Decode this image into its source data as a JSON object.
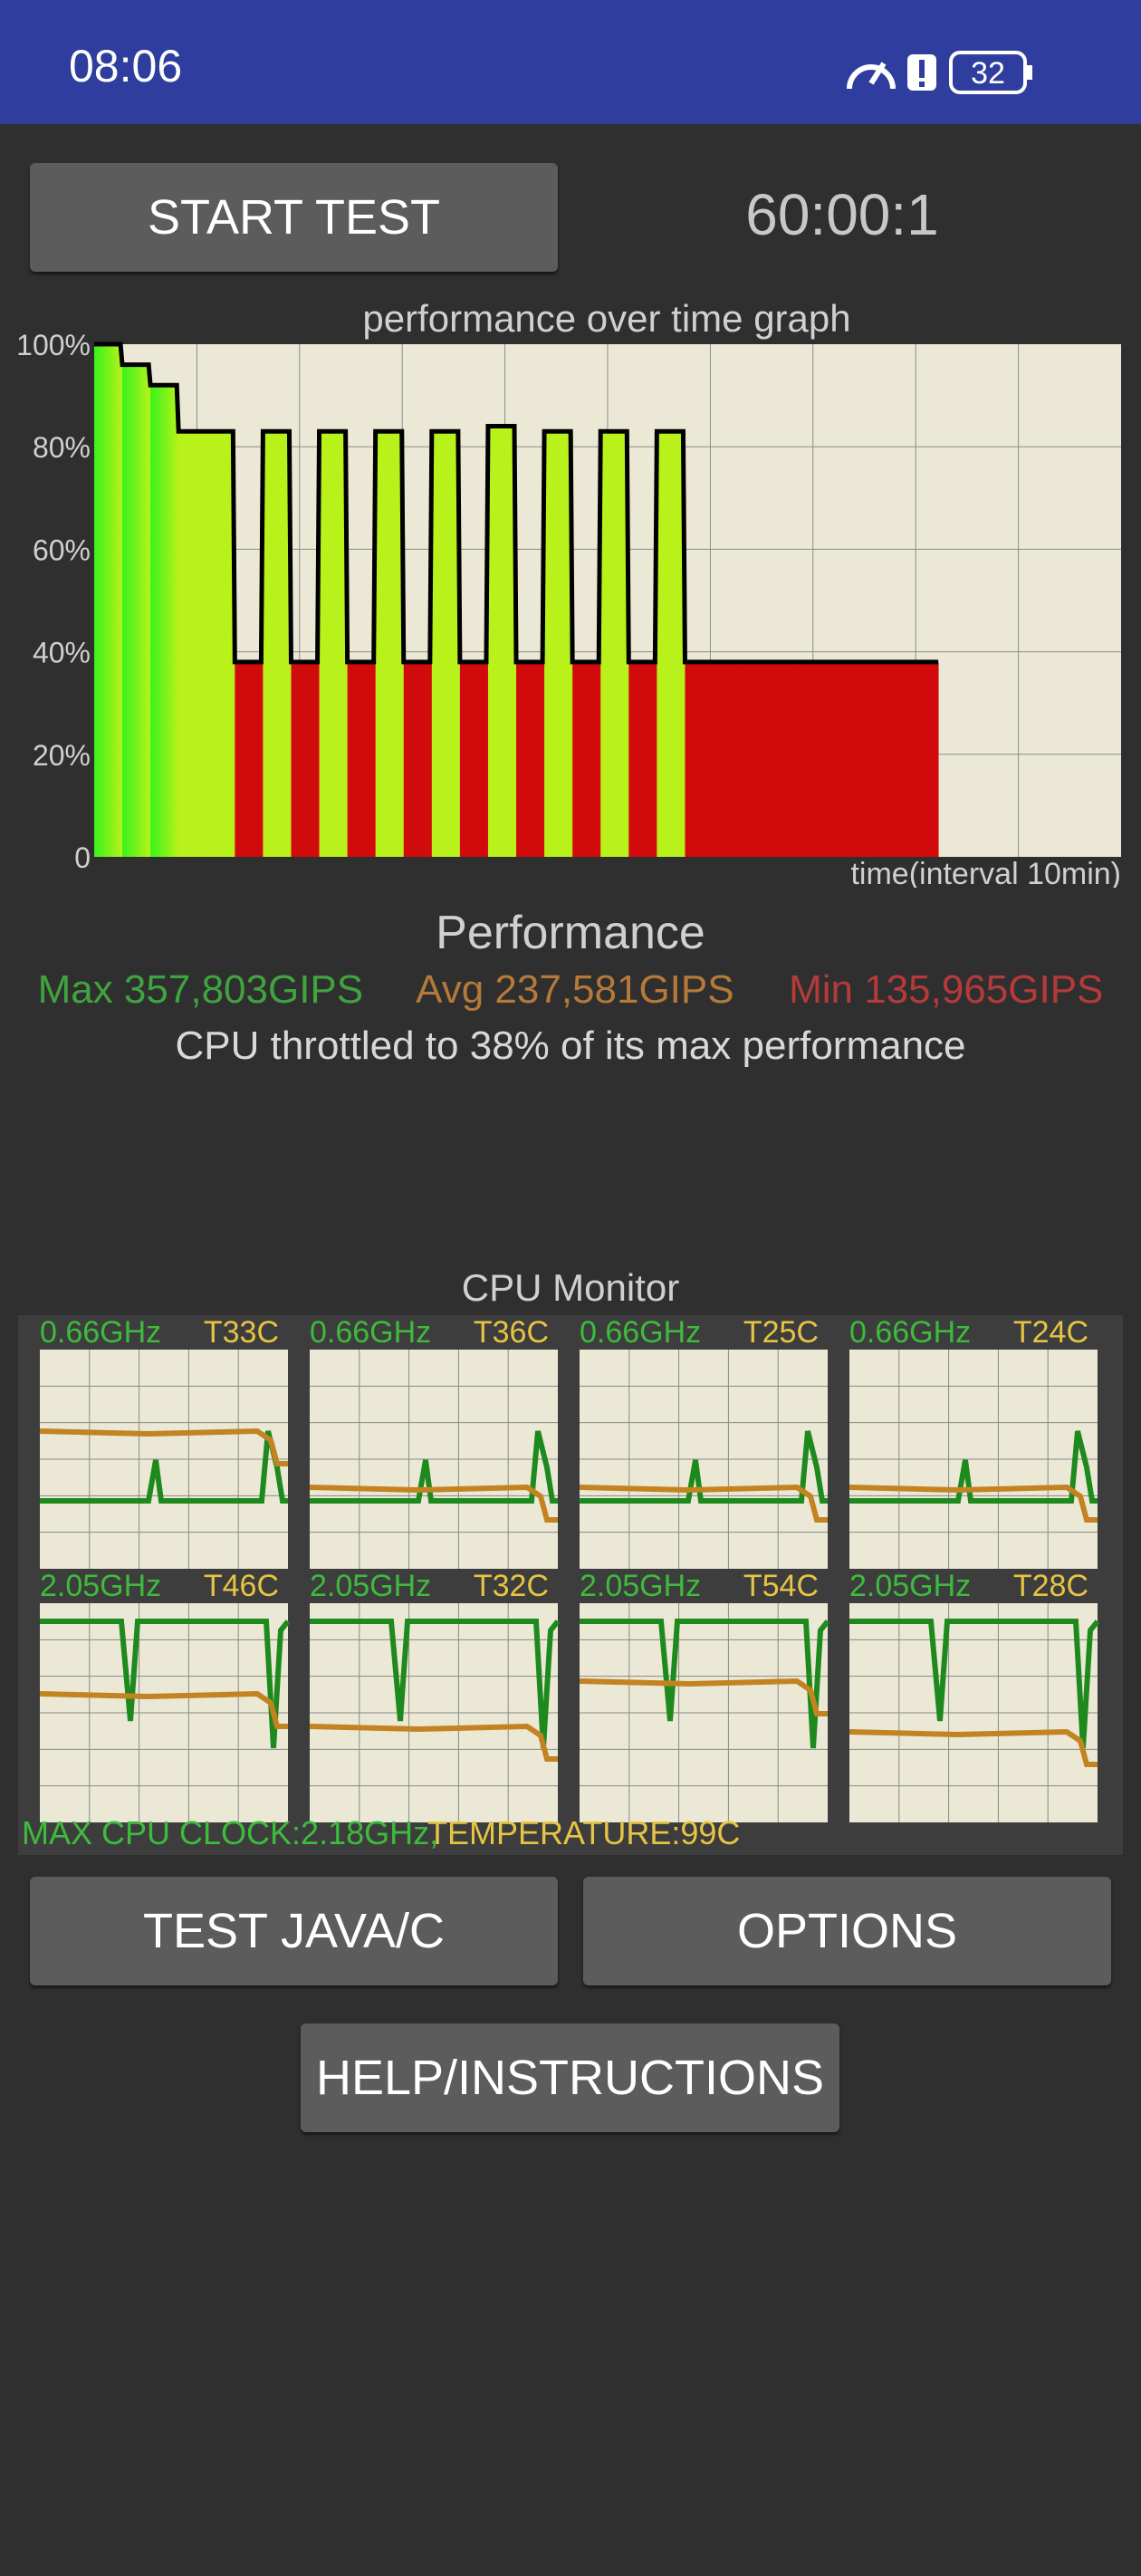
{
  "status_bar": {
    "time": "08:06",
    "battery": "32",
    "icons": [
      "speedometer-icon",
      "alert-icon",
      "battery-icon"
    ],
    "background_color": "#2f3e9e"
  },
  "controls": {
    "start_button": "START TEST",
    "timer": "60:00:1"
  },
  "graph": {
    "title": "performance over time graph",
    "x_label": "time(interval 10min)",
    "y_ticks": [
      "100%",
      "80%",
      "60%",
      "40%",
      "20%",
      "0"
    ]
  },
  "performance": {
    "heading": "Performance",
    "max": "Max 357,803GIPS",
    "avg": "Avg 237,581GIPS",
    "min": "Min 135,965GIPS",
    "max_color": "#3fa33f",
    "avg_color": "#b5793a",
    "min_color": "#b53a3a",
    "throttle_message": "CPU throttled to 38% of its max performance"
  },
  "cpu_monitor": {
    "title": "CPU Monitor",
    "cores": [
      {
        "freq": "0.66GHz",
        "temp": "T33C"
      },
      {
        "freq": "0.66GHz",
        "temp": "T36C"
      },
      {
        "freq": "0.66GHz",
        "temp": "T25C"
      },
      {
        "freq": "0.66GHz",
        "temp": "T24C"
      },
      {
        "freq": "2.05GHz",
        "temp": "T46C"
      },
      {
        "freq": "2.05GHz",
        "temp": "T32C"
      },
      {
        "freq": "2.05GHz",
        "temp": "T54C"
      },
      {
        "freq": "2.05GHz",
        "temp": "T28C"
      }
    ],
    "max_clock": "MAX CPU CLOCK:2.18GHz,",
    "temperature": "TEMPERATURE:99C"
  },
  "buttons": {
    "test_java_c": "TEST JAVA/C",
    "options": "OPTIONS",
    "help": "HELP/INSTRUCTIONS"
  },
  "chart_data": {
    "type": "area",
    "title": "performance over time graph",
    "xlabel": "time(interval 10min)",
    "ylabel": "",
    "ylim": [
      0,
      100
    ],
    "x": [
      0,
      2,
      4,
      6,
      8,
      10,
      12,
      14,
      16,
      18,
      20,
      22,
      24,
      26,
      28,
      30,
      32,
      34,
      36,
      38,
      40,
      42,
      44,
      46,
      48,
      50,
      52,
      54,
      56,
      58,
      60
    ],
    "series": [
      {
        "name": "",
        "values": [
          100,
          96,
          92,
          83,
          83,
          38,
          83,
          38,
          83,
          38,
          83,
          38,
          83,
          38,
          84,
          38,
          83,
          38,
          83,
          38,
          83,
          38,
          38,
          38,
          38,
          38,
          38,
          38,
          38,
          38,
          38
        ]
      }
    ]
  }
}
